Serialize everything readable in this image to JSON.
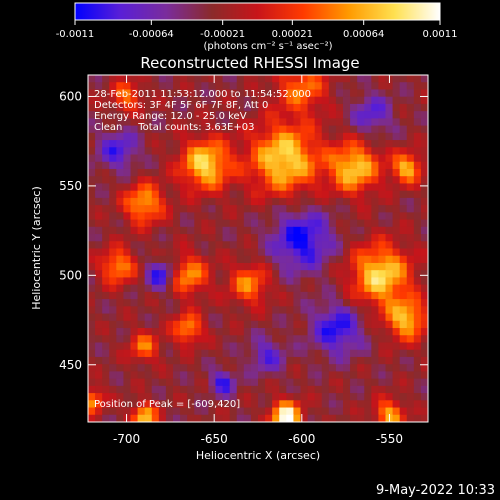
{
  "colorbar": {
    "tick_labels": [
      "-0.0011",
      "-0.00064",
      "-0.00021",
      "0.00021",
      "0.00064",
      "0.0011"
    ],
    "ticks": [
      -0.0011,
      -0.00064,
      -0.00021,
      0.00021,
      0.00064,
      0.0011
    ],
    "units": "(photons cm⁻² s⁻¹ asec⁻²)",
    "range": [
      -0.0011,
      0.0011
    ],
    "colormap": [
      "#0000ff",
      "#5a1fd6",
      "#7a2c9c",
      "#8b2a2a",
      "#c8141a",
      "#ff3a00",
      "#ff9a00",
      "#ffe050",
      "#ffffff"
    ]
  },
  "chart_data": {
    "type": "heatmap",
    "title": "Reconstructed RHESSI Image",
    "xlabel": "Heliocentric X (arcsec)",
    "ylabel": "Heliocentric Y (arcsec)",
    "xlim": [
      -722,
      -528
    ],
    "ylim": [
      418,
      612
    ],
    "x_ticks": [
      -700,
      -650,
      -600,
      -550
    ],
    "y_ticks": [
      450,
      500,
      550,
      600
    ],
    "x_tick_labels": [
      "-700",
      "-650",
      "-600",
      "-550"
    ],
    "y_tick_labels": [
      "450",
      "500",
      "550",
      "600"
    ],
    "info_lines": [
      "28-Feb-2011 11:53:12.000 to 11:54:52.000",
      "Detectors: 3F 4F 5F 6F 7F 8F, Att 0",
      "Energy Range: 12.0 - 25.0 keV",
      "Clean     Total counts: 3.63E+03"
    ],
    "peak_label": "Position of Peak = [-609,420]",
    "peak": [
      -609,
      420
    ],
    "grid_cols": 48,
    "grid_rows": 48,
    "blobs": [
      [
        -609,
        421,
        6,
        1.0
      ],
      [
        -690,
        421,
        5,
        0.75
      ],
      [
        -550,
        422,
        6,
        0.65
      ],
      [
        -705,
        505,
        7,
        0.6
      ],
      [
        -690,
        540,
        8,
        0.65
      ],
      [
        -655,
        562,
        10,
        0.8
      ],
      [
        -610,
        565,
        14,
        0.8
      ],
      [
        -570,
        560,
        10,
        0.75
      ],
      [
        -540,
        560,
        6,
        0.7
      ],
      [
        -665,
        500,
        8,
        0.6
      ],
      [
        -630,
        495,
        8,
        0.55
      ],
      [
        -555,
        500,
        12,
        0.8
      ],
      [
        -540,
        475,
        8,
        0.7
      ],
      [
        -665,
        470,
        6,
        0.6
      ],
      [
        -690,
        460,
        6,
        0.5
      ],
      [
        -700,
        600,
        6,
        0.5
      ],
      [
        -600,
        605,
        10,
        0.5
      ],
      [
        -720,
        430,
        5,
        0.6
      ],
      [
        -645,
        440,
        5,
        -0.5
      ],
      [
        -680,
        500,
        6,
        -0.55
      ],
      [
        -600,
        520,
        12,
        -0.6
      ],
      [
        -580,
        470,
        10,
        -0.55
      ],
      [
        -705,
        570,
        8,
        -0.45
      ],
      [
        -620,
        455,
        7,
        -0.4
      ],
      [
        -560,
        590,
        8,
        -0.4
      ]
    ]
  },
  "footer": {
    "timestamp": "9-May-2022 10:33"
  }
}
